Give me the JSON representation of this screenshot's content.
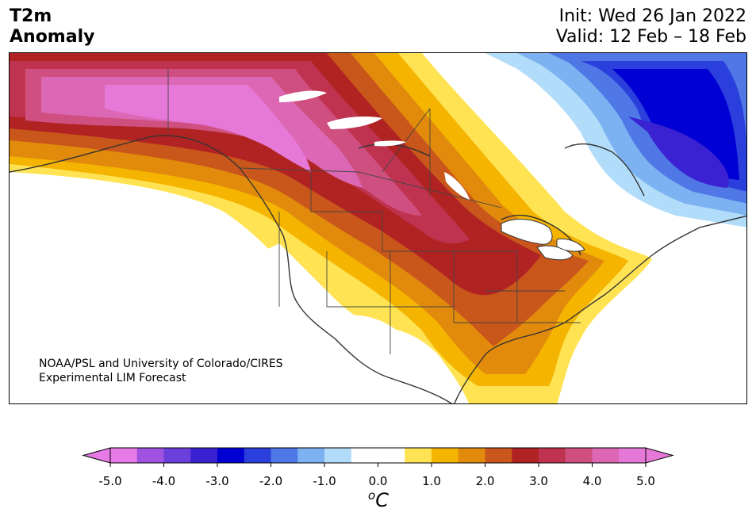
{
  "header": {
    "variable": "T2m",
    "subtitle": "Anomaly",
    "init": "Init: Wed 26 Jan 2022",
    "valid": "Valid: 12 Feb – 18 Feb"
  },
  "credit": {
    "line1": "NOAA/PSL and University of Colorado/CIRES",
    "line2": "Experimental LIM Forecast"
  },
  "colorbar": {
    "unit_sup": "o",
    "unit_main": "C",
    "ticks": [
      "-5.0",
      "-4.0",
      "-3.0",
      "-2.0",
      "-1.0",
      "0.0",
      "1.0",
      "2.0",
      "3.0",
      "4.0",
      "5.0"
    ],
    "tick_values": [
      -5,
      -4,
      -3,
      -2,
      -1,
      0,
      1,
      2,
      3,
      4,
      5
    ],
    "range": [
      -5,
      5
    ],
    "step": 0.5,
    "extend": "both",
    "colors": [
      "#e67ae6",
      "#a052e0",
      "#6a3fdb",
      "#3a22d2",
      "#0000d5",
      "#2a3fdc",
      "#4f77e6",
      "#7db2f2",
      "#b1dcfa",
      "#ffffff",
      "#ffffff",
      "#ffe352",
      "#f4b400",
      "#e18a0c",
      "#c9561a",
      "#b12323",
      "#bf3350",
      "#cf5080",
      "#dc67b4",
      "#e679d8"
    ]
  },
  "map": {
    "region": "North America",
    "anomaly_scale": "T2m anomaly (°C)"
  }
}
